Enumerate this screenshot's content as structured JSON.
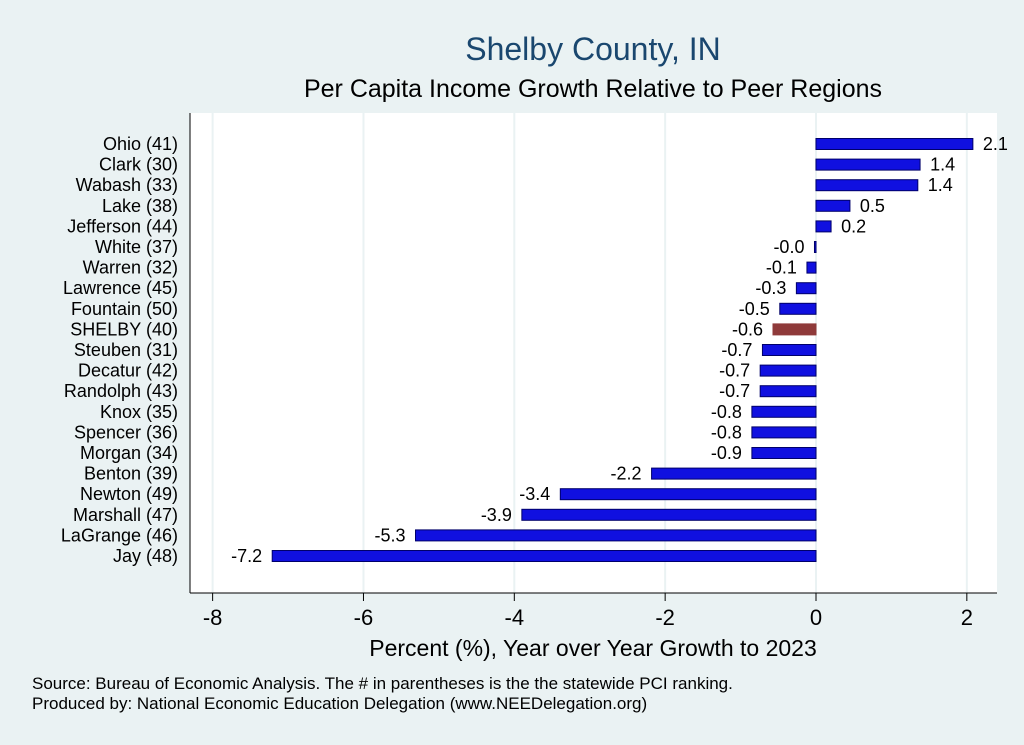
{
  "chart_data": {
    "type": "bar",
    "orientation": "horizontal",
    "title": "Shelby County, IN",
    "subtitle": "Per Capita Income Growth Relative to Peer Regions",
    "xlabel": "Percent (%), Year over Year Growth to 2023",
    "xlim": [
      -8.3,
      2.4
    ],
    "xticks": [
      -8,
      -6,
      -4,
      -2,
      0,
      2
    ],
    "grid": true,
    "categories": [
      "Ohio (41)",
      "Clark (30)",
      "Wabash (33)",
      "Lake (38)",
      "Jefferson (44)",
      "White (37)",
      "Warren (32)",
      "Lawrence (45)",
      "Fountain (50)",
      "SHELBY (40)",
      "Steuben (31)",
      "Decatur (42)",
      "Randolph (43)",
      "Knox (35)",
      "Spencer (36)",
      "Morgan (34)",
      "Benton (39)",
      "Newton (49)",
      "Marshall (47)",
      "LaGrange (46)",
      "Jay (48)"
    ],
    "values": [
      2.08,
      1.38,
      1.35,
      0.45,
      0.2,
      -0.02,
      -0.12,
      -0.26,
      -0.48,
      -0.57,
      -0.71,
      -0.74,
      -0.74,
      -0.85,
      -0.85,
      -0.85,
      -2.18,
      -3.39,
      -3.9,
      -5.31,
      -7.21
    ],
    "value_labels": [
      "2.1",
      "1.4",
      "1.4",
      "0.5",
      "0.2",
      "-0.0",
      "-0.1",
      "-0.3",
      "-0.5",
      "-0.6",
      "-0.7",
      "-0.7",
      "-0.7",
      "-0.8",
      "-0.8",
      "-0.9",
      "-2.2",
      "-3.4",
      "-3.9",
      "-5.3",
      "-7.2"
    ],
    "highlight": "SHELBY (40)",
    "colors": {
      "bar": "#1010e0",
      "bar_edge": "#00006a",
      "highlight": "#8f3a3a",
      "grid": "#eaf2f3",
      "title": "#1a476f",
      "plot_bg": "#ffffff",
      "page_bg": "#eaf2f3"
    }
  },
  "notes": {
    "source": "Source: Bureau of Economic Analysis. The # in parentheses is the the statewide PCI ranking.",
    "produced_by": "Produced by: National Economic Education Delegation (www.NEEDelegation.org)"
  }
}
